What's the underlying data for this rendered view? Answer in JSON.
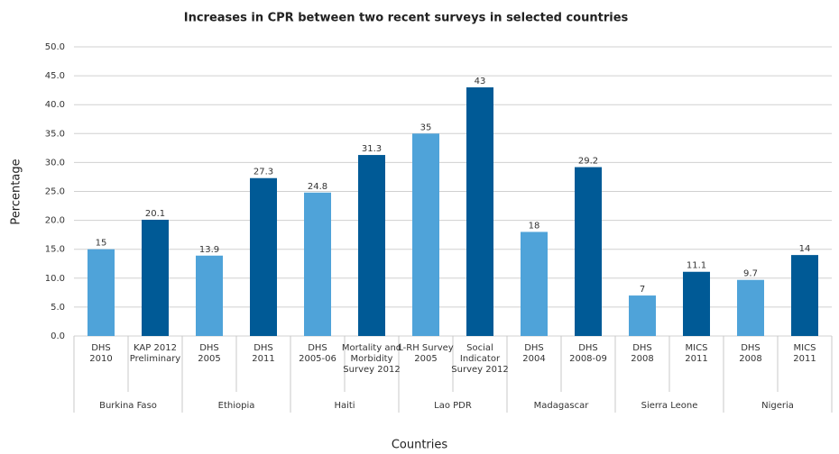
{
  "chart_data": {
    "type": "bar",
    "title": "Increases in CPR between two recent surveys in selected countries",
    "x_label": "Countries",
    "y_label": "Percentage",
    "categories": [
      [
        "DHS",
        "2010"
      ],
      [
        "KAP 2012",
        "Preliminary"
      ],
      [
        "DHS",
        "2005"
      ],
      [
        "DHS",
        "2011"
      ],
      [
        "DHS",
        "2005-06"
      ],
      [
        "Mortality and",
        "Morbidity",
        "Survey 2012"
      ],
      [
        "L-RH Survey",
        "2005"
      ],
      [
        "Social",
        "Indicator",
        "Survey 2012"
      ],
      [
        "DHS",
        "2004"
      ],
      [
        "DHS",
        "2008-09"
      ],
      [
        "DHS",
        "2008"
      ],
      [
        "MICS",
        "2011"
      ],
      [
        "DHS",
        "2008"
      ],
      [
        "MICS",
        "2011"
      ]
    ],
    "groups": [
      "Burkina Faso",
      "Ethiopia",
      "Haiti",
      "Lao PDR",
      "Madagascar",
      "Sierra Leone",
      "Nigeria"
    ],
    "values": [
      15,
      20.1,
      13.9,
      27.3,
      24.8,
      31.3,
      35,
      43,
      18,
      29.2,
      7,
      11.1,
      9.7,
      14
    ],
    "colors": [
      "#4fa3d9",
      "#005a96",
      "#4fa3d9",
      "#005a96",
      "#4fa3d9",
      "#005a96",
      "#4fa3d9",
      "#005a96",
      "#4fa3d9",
      "#005a96",
      "#4fa3d9",
      "#005a96",
      "#4fa3d9",
      "#005a96"
    ],
    "ylim": [
      0,
      50
    ],
    "yticks": [
      {
        "value": 0,
        "label": "0.0"
      },
      {
        "value": 5,
        "label": "5.0"
      },
      {
        "value": 10,
        "label": "10.0"
      },
      {
        "value": 15,
        "label": "15.0"
      },
      {
        "value": 20,
        "label": "20.0"
      },
      {
        "value": 25,
        "label": "25.0"
      },
      {
        "value": 30,
        "label": "30.0"
      },
      {
        "value": 35,
        "label": "35.0"
      },
      {
        "value": 40,
        "label": "40.0"
      },
      {
        "value": 45,
        "label": "45.0"
      },
      {
        "value": 50,
        "label": "50.0"
      }
    ],
    "grid": true
  }
}
